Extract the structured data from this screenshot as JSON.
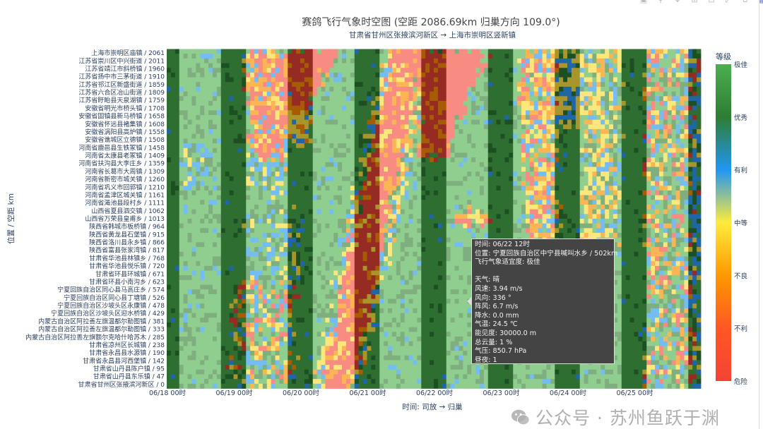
{
  "toolbar": {
    "icons": [
      "camera-icon",
      "zoom-icon",
      "pan-icon",
      "zoom-in-icon",
      "zoom-out-icon",
      "autoscale-icon",
      "reset-icon",
      "plotly-logo-icon"
    ]
  },
  "chart_data": {
    "type": "heatmap",
    "title": "赛鸽飞行气象时空图 (空距 2086.69km 归巢方向 109.0°)",
    "subtitle": "甘肃省甘州区张掖滨河新区 → 上海市崇明区竖新镇",
    "xlabel": "时间: 司放 → 归巢",
    "ylabel": "位置 / 空距 km",
    "x_range_hours": [
      0,
      192
    ],
    "x_start": "06/18 00时",
    "x_ticks": [
      {
        "label": "06/18 00时",
        "hour": 0
      },
      {
        "label": "06/19 00时",
        "hour": 24
      },
      {
        "label": "06/20 00时",
        "hour": 48
      },
      {
        "label": "06/21 00时",
        "hour": 72
      },
      {
        "label": "06/22 00时",
        "hour": 96
      },
      {
        "label": "06/23 00时",
        "hour": 120
      },
      {
        "label": "06/24 00时",
        "hour": 144
      },
      {
        "label": "06/25 00时",
        "hour": 168
      }
    ],
    "y_range_km": [
      0,
      2061
    ],
    "y_categories": [
      "上海市崇明区庙镇 / 2061",
      "江苏省崇川区中兴街道 / 2011",
      "江苏省靖江市斜桥镇 / 1960",
      "江苏省扬中市三茅街道 / 1910",
      "江苏省邗江区新盛街道 / 1859",
      "江苏省六合区冶山街道 / 1809",
      "江苏省盱眙县天泉湖镇 / 1759",
      "安徽省明光市桥头镇 / 1708",
      "安徽省固镇县新马桥镇 / 1658",
      "安徽省怀远县褚集镇 / 1608",
      "安徽省涡阳县高炉镇 / 1558",
      "安徽省谯城区立德镇 / 1508",
      "河南省鹿邑县生铁冢镇 / 1458",
      "河南省太康县老冢镇 / 1409",
      "河南省扶沟县大李庄乡 / 1359",
      "河南省长葛市大周镇 / 1309",
      "河南省新密市城关镇 / 1260",
      "河南省巩义市回郭镇 / 1210",
      "河南省孟津区城关镇 / 1161",
      "河南省渑池县段村乡 / 1111",
      "山西省夏县泗交镇 / 1062",
      "山西省万荣县皇甫乡 / 1013",
      "陕西省韩城市板桥镇 / 964",
      "陕西省黄龙县石堡镇 / 915",
      "陕西省洛川县永乡镇 / 866",
      "陕西省富县张家湾镇 / 817",
      "甘肃省华池县林镇乡 / 768",
      "甘肃省华池县悦乐镇 / 720",
      "甘肃省环县环城镇 / 671",
      "甘肃省环县小南沟乡 / 623",
      "宁夏回族自治区同心县马高庄乡 / 574",
      "宁夏回族自治区同心县丁塘镇 / 526",
      "宁夏回族自治区沙坡头区永康镇 / 478",
      "宁夏回族自治区沙坡头区迎水桥镇 / 429",
      "内蒙古自治区阿拉善左旗温都尔勒图镇 / 381",
      "内蒙古自治区阿拉善左旗温都尔勒图镇 / 333",
      "内蒙古自治区阿拉善左旗额尔克哈什哈苏木 / 285",
      "甘肃省凉州区长城镇 / 238",
      "甘肃省永昌县水源镇 / 190",
      "甘肃省永昌县河西堡镇 / 142",
      "甘肃省山丹县陈户镇 / 95",
      "甘肃省山丹县东乐镇 / 47",
      "甘肃省甘州区张掖滨河新区 / 0"
    ],
    "colorbar": {
      "title": "等级",
      "levels": [
        "极佳",
        "优秀",
        "有利",
        "中等",
        "不良",
        "不利",
        "危险"
      ],
      "gradient": [
        "#4caf50",
        "#2e7d32",
        "#2196f3",
        "#ffeb3b",
        "#ff9800",
        "#ff5722",
        "#f44336"
      ]
    },
    "night_hours": [
      19,
      4
    ],
    "cell_colors": {
      "day": [
        "#f88b82",
        "#f88b82",
        "#fdb453",
        "#fde77b",
        "#74bdf3",
        "#7fae7f",
        "#8fce8f"
      ],
      "night": [
        "#952b23",
        "#952b23",
        "#a65c03",
        "#a8962c",
        "#1f66a6",
        "#1c4f21",
        "#2f6e31"
      ]
    },
    "level_index_note": "0=危险 … 6=极佳",
    "regions": [
      {
        "poly": [
          [
            28,
            2061
          ],
          [
            43,
            2061
          ],
          [
            43,
            1350
          ],
          [
            30,
            1450
          ]
        ],
        "levels": [
          1,
          1,
          2,
          2,
          1,
          3,
          4
        ]
      },
      {
        "poly": [
          [
            43,
            2061
          ],
          [
            52,
            2061
          ],
          [
            52,
            1700
          ],
          [
            43,
            1700
          ]
        ],
        "levels": [
          1,
          1,
          1,
          2
        ]
      },
      {
        "poly": [
          [
            43,
            1700
          ],
          [
            52,
            1700
          ],
          [
            52,
            1480
          ],
          [
            43,
            1480
          ]
        ],
        "levels": [
          2,
          3,
          4,
          3
        ]
      },
      {
        "poly": [
          [
            52,
            2061
          ],
          [
            63,
            2061
          ],
          [
            52,
            1750
          ]
        ],
        "levels": [
          1,
          1,
          1,
          1,
          2
        ]
      },
      {
        "poly": [
          [
            28,
            1450
          ],
          [
            43,
            1350
          ],
          [
            43,
            1150
          ],
          [
            30,
            1250
          ]
        ],
        "levels": [
          4,
          4,
          3,
          6,
          5
        ]
      },
      {
        "poly": [
          [
            6,
            1500
          ],
          [
            15,
            1500
          ],
          [
            15,
            1200
          ],
          [
            6,
            1200
          ]
        ],
        "levels": [
          4,
          4,
          6,
          5,
          3,
          6
        ]
      },
      {
        "poly": [
          [
            28,
            1075
          ],
          [
            49,
            1075
          ],
          [
            49,
            640
          ],
          [
            28,
            640
          ]
        ],
        "levels": [
          4,
          6,
          6,
          5,
          3,
          6
        ]
      },
      {
        "poly": [
          [
            23,
            640
          ],
          [
            46,
            640
          ],
          [
            46,
            0
          ],
          [
            23,
            0
          ]
        ],
        "levels": [
          3,
          4,
          2,
          6,
          6,
          6,
          5,
          1
        ]
      },
      {
        "band": {
          "t_at_d0": 61,
          "t_at_dmax": 87,
          "half_width": 5.5
        },
        "levels": [
          1,
          1,
          1,
          2,
          1,
          3
        ]
      },
      {
        "band": {
          "t_at_d0": 61,
          "t_at_dmax": 87,
          "half_width": 9
        },
        "levels": [
          3,
          4,
          2,
          6,
          5,
          3
        ]
      },
      {
        "poly": [
          [
            91,
            2061
          ],
          [
            101,
            2061
          ],
          [
            101,
            1400
          ],
          [
            91,
            1400
          ]
        ],
        "levels": [
          1,
          1,
          1,
          2
        ]
      },
      {
        "poly": [
          [
            100,
            2061
          ],
          [
            116,
            2061
          ],
          [
            101,
            1470
          ]
        ],
        "levels": [
          1
        ]
      },
      {
        "poly": [
          [
            126,
            2061
          ],
          [
            140,
            2061
          ],
          [
            141,
            900
          ],
          [
            130,
            900
          ]
        ],
        "levels": [
          1,
          2,
          2,
          3,
          3,
          4,
          6
        ]
      },
      {
        "poly": [
          [
            104,
            1075
          ],
          [
            116,
            1075
          ],
          [
            116,
            1000
          ],
          [
            104,
            1000
          ]
        ],
        "levels": [
          1,
          2,
          3
        ]
      },
      {
        "poly": [
          [
            140,
            2061
          ],
          [
            149,
            2061
          ],
          [
            149,
            1600
          ],
          [
            140,
            1600
          ]
        ],
        "levels": [
          3,
          3,
          3,
          4,
          4,
          5
        ]
      },
      {
        "poly": [
          [
            149,
            2061
          ],
          [
            163,
            2061
          ],
          [
            163,
            850
          ],
          [
            149,
            850
          ]
        ],
        "levels": [
          3,
          3,
          4,
          2,
          6,
          5,
          6
        ]
      },
      {
        "poly": [
          [
            172,
            2061
          ],
          [
            188,
            2061
          ],
          [
            188,
            0
          ],
          [
            172,
            0
          ]
        ],
        "levels": [
          3,
          4,
          2,
          6,
          6,
          5,
          1,
          6
        ]
      },
      {
        "poly": [
          [
            188,
            2061
          ],
          [
            192,
            2061
          ],
          [
            192,
            0
          ],
          [
            188,
            0
          ]
        ],
        "levels": [
          3,
          4,
          1,
          5,
          6,
          4
        ]
      }
    ]
  },
  "tooltip": {
    "time": "时间: 06/22 12时",
    "location": "位置: 宁夏回族自治区中宁县喊叫水乡 / 502km",
    "suitability": "飞行气象适宜度: 极佳",
    "weather": "天气: 晴",
    "wind_speed": "风速: 3.94 m/s",
    "wind_dir": "风向: 336 °",
    "gust": "阵风: 6.7 m/s",
    "precip": "降水: 0.0 mm",
    "temp": "气温: 24.5 ℃",
    "visibility": "能见度: 30000.0 m",
    "cloud": "总云量: 1 %",
    "pressure": "气压: 850.7 hPa",
    "daynight": "昼夜: 1"
  },
  "watermark": {
    "text": "公众号 · 苏州鱼跃于渊"
  }
}
